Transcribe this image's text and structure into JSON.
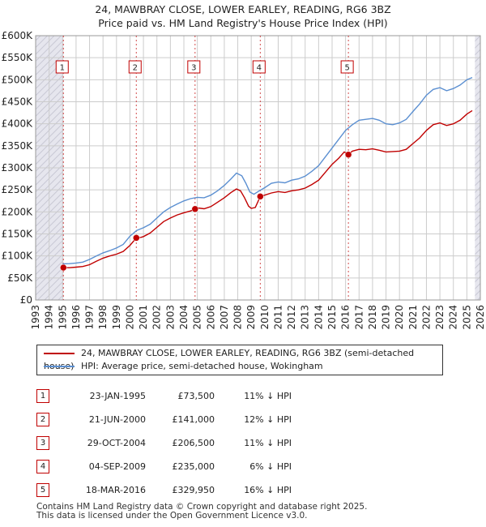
{
  "title_line1": "24, MAWBRAY CLOSE, LOWER EARLEY, READING, RG6 3BZ",
  "title_line2": "Price paid vs. HM Land Registry's House Price Index (HPI)",
  "colors": {
    "property": "#c00000",
    "hpi": "#5b8fd1",
    "grid": "#cccccc",
    "shade": "#e6e6ee"
  },
  "chart_data": {
    "type": "line",
    "xlim": [
      1993,
      2026
    ],
    "ylim": [
      0,
      600000
    ],
    "yticks": [
      {
        "value": 0,
        "label": "£0"
      },
      {
        "value": 50000,
        "label": "£50K"
      },
      {
        "value": 100000,
        "label": "£100K"
      },
      {
        "value": 150000,
        "label": "£150K"
      },
      {
        "value": 200000,
        "label": "£200K"
      },
      {
        "value": 250000,
        "label": "£250K"
      },
      {
        "value": 300000,
        "label": "£300K"
      },
      {
        "value": 350000,
        "label": "£350K"
      },
      {
        "value": 400000,
        "label": "£400K"
      },
      {
        "value": 450000,
        "label": "£450K"
      },
      {
        "value": 500000,
        "label": "£500K"
      },
      {
        "value": 550000,
        "label": "£550K"
      },
      {
        "value": 600000,
        "label": "£600K"
      }
    ],
    "xticks": [
      "1993",
      "1994",
      "1995",
      "1996",
      "1997",
      "1998",
      "1999",
      "2000",
      "2001",
      "2002",
      "2003",
      "2004",
      "2005",
      "2006",
      "2007",
      "2008",
      "2009",
      "2010",
      "2011",
      "2012",
      "2013",
      "2014",
      "2015",
      "2016",
      "2017",
      "2018",
      "2019",
      "2020",
      "2021",
      "2022",
      "2023",
      "2024",
      "2025",
      "2026"
    ],
    "shaded_ranges": [
      [
        1993,
        1995.06
      ],
      [
        2025.6,
        2026
      ]
    ],
    "series": [
      {
        "name": "24, MAWBRAY CLOSE, LOWER EARLEY, READING, RG6 3BZ (semi-detached house)",
        "points": [
          [
            1995.06,
            73500
          ],
          [
            1995.5,
            73200
          ],
          [
            1996,
            74500
          ],
          [
            1996.5,
            76000
          ],
          [
            1997,
            80000
          ],
          [
            1997.5,
            88000
          ],
          [
            1998,
            95000
          ],
          [
            1998.5,
            100000
          ],
          [
            1999,
            104000
          ],
          [
            1999.5,
            110000
          ],
          [
            2000,
            124000
          ],
          [
            2000.47,
            141000
          ],
          [
            2000.8,
            142000
          ],
          [
            2001,
            144000
          ],
          [
            2001.5,
            152000
          ],
          [
            2002,
            165000
          ],
          [
            2002.5,
            178000
          ],
          [
            2003,
            186000
          ],
          [
            2003.5,
            193000
          ],
          [
            2004,
            198000
          ],
          [
            2004.5,
            202000
          ],
          [
            2004.83,
            206500
          ],
          [
            2005,
            209000
          ],
          [
            2005.5,
            207000
          ],
          [
            2006,
            212000
          ],
          [
            2006.5,
            222000
          ],
          [
            2007,
            232000
          ],
          [
            2007.5,
            244000
          ],
          [
            2007.9,
            252000
          ],
          [
            2008.2,
            248000
          ],
          [
            2008.5,
            232000
          ],
          [
            2008.8,
            213000
          ],
          [
            2009,
            208000
          ],
          [
            2009.3,
            210000
          ],
          [
            2009.67,
            235000
          ],
          [
            2010,
            238000
          ],
          [
            2010.5,
            243000
          ],
          [
            2011,
            246000
          ],
          [
            2011.5,
            244000
          ],
          [
            2012,
            248000
          ],
          [
            2012.5,
            250000
          ],
          [
            2013,
            254000
          ],
          [
            2013.5,
            262000
          ],
          [
            2014,
            272000
          ],
          [
            2014.5,
            290000
          ],
          [
            2015,
            308000
          ],
          [
            2015.5,
            322000
          ],
          [
            2015.9,
            336000
          ],
          [
            2016.21,
            329950
          ],
          [
            2016.5,
            338000
          ],
          [
            2017,
            342000
          ],
          [
            2017.5,
            341000
          ],
          [
            2018,
            343000
          ],
          [
            2018.5,
            340000
          ],
          [
            2019,
            336000
          ],
          [
            2019.5,
            337000
          ],
          [
            2020,
            338000
          ],
          [
            2020.5,
            342000
          ],
          [
            2021,
            355000
          ],
          [
            2021.5,
            368000
          ],
          [
            2022,
            385000
          ],
          [
            2022.5,
            398000
          ],
          [
            2023,
            402000
          ],
          [
            2023.5,
            396000
          ],
          [
            2024,
            400000
          ],
          [
            2024.5,
            408000
          ],
          [
            2025,
            422000
          ],
          [
            2025.4,
            430000
          ]
        ]
      },
      {
        "name": "HPI: Average price, semi-detached house, Wokingham",
        "points": [
          [
            1995,
            82000
          ],
          [
            1995.5,
            82500
          ],
          [
            1996,
            84000
          ],
          [
            1996.5,
            86000
          ],
          [
            1997,
            92000
          ],
          [
            1997.5,
            100000
          ],
          [
            1998,
            107000
          ],
          [
            1998.5,
            112000
          ],
          [
            1999,
            118000
          ],
          [
            1999.5,
            126000
          ],
          [
            2000,
            145000
          ],
          [
            2000.5,
            158000
          ],
          [
            2001,
            164000
          ],
          [
            2001.5,
            172000
          ],
          [
            2002,
            186000
          ],
          [
            2002.5,
            200000
          ],
          [
            2003,
            210000
          ],
          [
            2003.5,
            218000
          ],
          [
            2004,
            225000
          ],
          [
            2004.5,
            230000
          ],
          [
            2005,
            233000
          ],
          [
            2005.5,
            232000
          ],
          [
            2006,
            238000
          ],
          [
            2006.5,
            248000
          ],
          [
            2007,
            260000
          ],
          [
            2007.5,
            275000
          ],
          [
            2007.9,
            288000
          ],
          [
            2008.3,
            282000
          ],
          [
            2008.6,
            265000
          ],
          [
            2008.9,
            245000
          ],
          [
            2009.2,
            240000
          ],
          [
            2009.6,
            248000
          ],
          [
            2010,
            255000
          ],
          [
            2010.5,
            265000
          ],
          [
            2011,
            268000
          ],
          [
            2011.5,
            266000
          ],
          [
            2012,
            272000
          ],
          [
            2012.5,
            275000
          ],
          [
            2013,
            281000
          ],
          [
            2013.5,
            292000
          ],
          [
            2014,
            305000
          ],
          [
            2014.5,
            325000
          ],
          [
            2015,
            345000
          ],
          [
            2015.5,
            365000
          ],
          [
            2016,
            385000
          ],
          [
            2016.5,
            398000
          ],
          [
            2017,
            408000
          ],
          [
            2017.5,
            410000
          ],
          [
            2018,
            412000
          ],
          [
            2018.5,
            408000
          ],
          [
            2019,
            400000
          ],
          [
            2019.5,
            398000
          ],
          [
            2020,
            402000
          ],
          [
            2020.5,
            410000
          ],
          [
            2021,
            428000
          ],
          [
            2021.5,
            445000
          ],
          [
            2022,
            465000
          ],
          [
            2022.5,
            478000
          ],
          [
            2023,
            482000
          ],
          [
            2023.5,
            475000
          ],
          [
            2024,
            480000
          ],
          [
            2024.5,
            488000
          ],
          [
            2025,
            500000
          ],
          [
            2025.4,
            505000
          ]
        ]
      }
    ],
    "sales": [
      {
        "n": "1",
        "year": 1995.06,
        "price": 73500
      },
      {
        "n": "2",
        "year": 2000.47,
        "price": 141000
      },
      {
        "n": "3",
        "year": 2004.83,
        "price": 206500
      },
      {
        "n": "4",
        "year": 2009.67,
        "price": 235000
      },
      {
        "n": "5",
        "year": 2016.21,
        "price": 329950
      }
    ]
  },
  "legend": {
    "property": "24, MAWBRAY CLOSE, LOWER EARLEY, READING, RG6 3BZ (semi-detached house)",
    "hpi": "HPI: Average price, semi-detached house, Wokingham"
  },
  "transactions": [
    {
      "n": "1",
      "date": "23-JAN-1995",
      "price": "£73,500",
      "hpi": "11% ↓ HPI"
    },
    {
      "n": "2",
      "date": "21-JUN-2000",
      "price": "£141,000",
      "hpi": "12% ↓ HPI"
    },
    {
      "n": "3",
      "date": "29-OCT-2004",
      "price": "£206,500",
      "hpi": "11% ↓ HPI"
    },
    {
      "n": "4",
      "date": "04-SEP-2009",
      "price": "£235,000",
      "hpi": "6% ↓ HPI"
    },
    {
      "n": "5",
      "date": "18-MAR-2016",
      "price": "£329,950",
      "hpi": "16% ↓ HPI"
    }
  ],
  "footer_line1": "Contains HM Land Registry data © Crown copyright and database right 2025.",
  "footer_line2": "This data is licensed under the Open Government Licence v3.0."
}
